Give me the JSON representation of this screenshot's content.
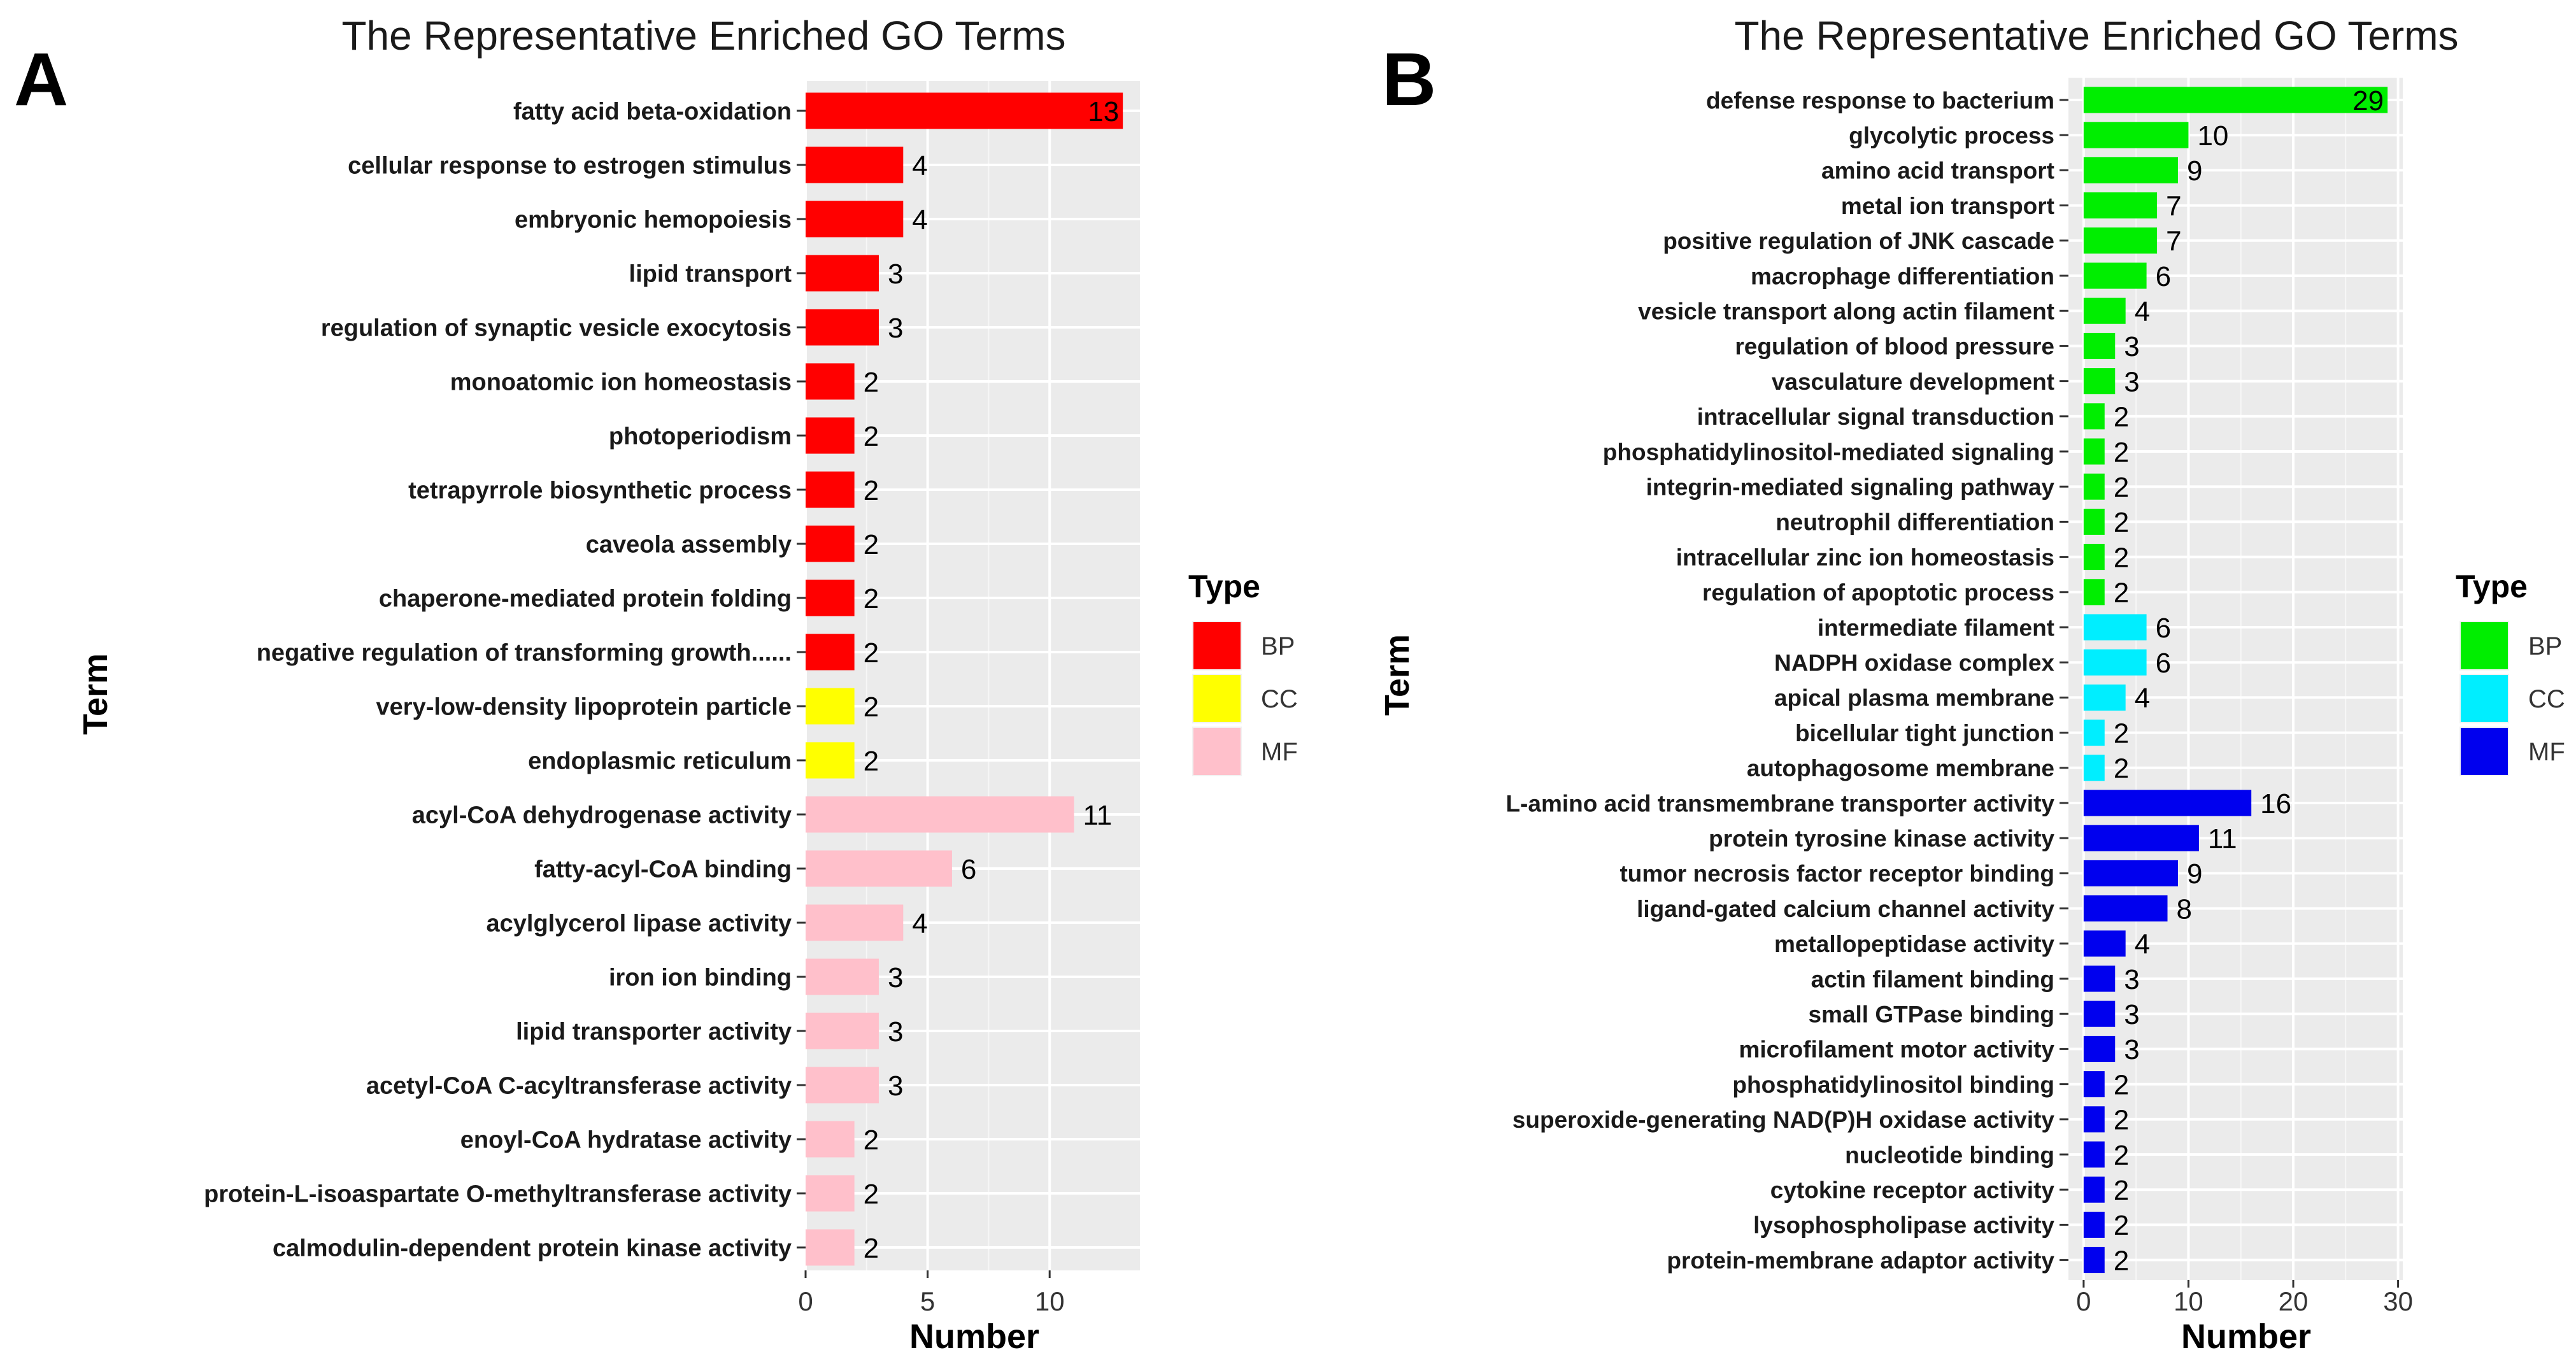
{
  "chart_data": [
    {
      "type": "bar",
      "panel": "A",
      "title": "The Representative Enriched GO Terms",
      "xlabel": "Number",
      "ylabel": "Term",
      "xlim": [
        0,
        13.7
      ],
      "xticks": [
        0,
        5,
        10
      ],
      "legend_title": "Type",
      "legend": [
        {
          "name": "BP",
          "color": "#ff0000"
        },
        {
          "name": "CC",
          "color": "#ffff00"
        },
        {
          "name": "MF",
          "color": "#ffc0cb"
        }
      ],
      "bars": [
        {
          "term": "fatty acid beta-oxidation",
          "value": 13,
          "type": "BP"
        },
        {
          "term": "cellular response to estrogen stimulus",
          "value": 4,
          "type": "BP"
        },
        {
          "term": "embryonic hemopoiesis",
          "value": 4,
          "type": "BP"
        },
        {
          "term": "lipid transport",
          "value": 3,
          "type": "BP"
        },
        {
          "term": "regulation of synaptic vesicle exocytosis",
          "value": 3,
          "type": "BP"
        },
        {
          "term": "monoatomic ion homeostasis",
          "value": 2,
          "type": "BP"
        },
        {
          "term": "photoperiodism",
          "value": 2,
          "type": "BP"
        },
        {
          "term": "tetrapyrrole biosynthetic process",
          "value": 2,
          "type": "BP"
        },
        {
          "term": "caveola assembly",
          "value": 2,
          "type": "BP"
        },
        {
          "term": "chaperone-mediated protein folding",
          "value": 2,
          "type": "BP"
        },
        {
          "term": "negative regulation of transforming growth......",
          "value": 2,
          "type": "BP"
        },
        {
          "term": "very-low-density lipoprotein particle",
          "value": 2,
          "type": "CC"
        },
        {
          "term": "endoplasmic reticulum",
          "value": 2,
          "type": "CC"
        },
        {
          "term": "acyl-CoA dehydrogenase activity",
          "value": 11,
          "type": "MF"
        },
        {
          "term": "fatty-acyl-CoA binding",
          "value": 6,
          "type": "MF"
        },
        {
          "term": "acylglycerol lipase activity",
          "value": 4,
          "type": "MF"
        },
        {
          "term": "iron ion binding",
          "value": 3,
          "type": "MF"
        },
        {
          "term": "lipid transporter activity",
          "value": 3,
          "type": "MF"
        },
        {
          "term": "acetyl-CoA C-acyltransferase activity",
          "value": 3,
          "type": "MF"
        },
        {
          "term": "enoyl-CoA hydratase activity",
          "value": 2,
          "type": "MF"
        },
        {
          "term": "protein-L-isoaspartate O-methyltransferase activity",
          "value": 2,
          "type": "MF"
        },
        {
          "term": "calmodulin-dependent protein kinase activity",
          "value": 2,
          "type": "MF"
        }
      ]
    },
    {
      "type": "bar",
      "panel": "B",
      "title": "The Representative Enriched GO Terms",
      "xlabel": "Number",
      "ylabel": "Term",
      "xlim": [
        -1.45,
        30.45
      ],
      "xticks": [
        0,
        10,
        20,
        30
      ],
      "legend_title": "Type",
      "legend": [
        {
          "name": "BP",
          "color": "#00ee00"
        },
        {
          "name": "CC",
          "color": "#00eeff"
        },
        {
          "name": "MF",
          "color": "#0000ee"
        }
      ],
      "bars": [
        {
          "term": "defense response to bacterium",
          "value": 29,
          "type": "BP"
        },
        {
          "term": "glycolytic process",
          "value": 10,
          "type": "BP"
        },
        {
          "term": "amino acid transport",
          "value": 9,
          "type": "BP"
        },
        {
          "term": "metal ion transport",
          "value": 7,
          "type": "BP"
        },
        {
          "term": "positive regulation of JNK cascade",
          "value": 7,
          "type": "BP"
        },
        {
          "term": "macrophage differentiation",
          "value": 6,
          "type": "BP"
        },
        {
          "term": "vesicle transport along actin filament",
          "value": 4,
          "type": "BP"
        },
        {
          "term": "regulation of blood pressure",
          "value": 3,
          "type": "BP"
        },
        {
          "term": "vasculature development",
          "value": 3,
          "type": "BP"
        },
        {
          "term": "intracellular signal transduction",
          "value": 2,
          "type": "BP"
        },
        {
          "term": "phosphatidylinositol-mediated signaling",
          "value": 2,
          "type": "BP"
        },
        {
          "term": "integrin-mediated signaling pathway",
          "value": 2,
          "type": "BP"
        },
        {
          "term": "neutrophil differentiation",
          "value": 2,
          "type": "BP"
        },
        {
          "term": "intracellular zinc ion homeostasis",
          "value": 2,
          "type": "BP"
        },
        {
          "term": "regulation of apoptotic process",
          "value": 2,
          "type": "BP"
        },
        {
          "term": "intermediate filament",
          "value": 6,
          "type": "CC"
        },
        {
          "term": "NADPH oxidase complex",
          "value": 6,
          "type": "CC"
        },
        {
          "term": "apical plasma membrane",
          "value": 4,
          "type": "CC"
        },
        {
          "term": "bicellular tight junction",
          "value": 2,
          "type": "CC"
        },
        {
          "term": "autophagosome membrane",
          "value": 2,
          "type": "CC"
        },
        {
          "term": "L-amino acid transmembrane transporter activity",
          "value": 16,
          "type": "MF"
        },
        {
          "term": "protein tyrosine kinase activity",
          "value": 11,
          "type": "MF"
        },
        {
          "term": "tumor necrosis factor receptor binding",
          "value": 9,
          "type": "MF"
        },
        {
          "term": "ligand-gated calcium channel activity",
          "value": 8,
          "type": "MF"
        },
        {
          "term": "metallopeptidase activity",
          "value": 4,
          "type": "MF"
        },
        {
          "term": "actin filament binding",
          "value": 3,
          "type": "MF"
        },
        {
          "term": "small GTPase binding",
          "value": 3,
          "type": "MF"
        },
        {
          "term": "microfilament motor activity",
          "value": 3,
          "type": "MF"
        },
        {
          "term": "phosphatidylinositol binding",
          "value": 2,
          "type": "MF"
        },
        {
          "term": "superoxide-generating NAD(P)H oxidase activity",
          "value": 2,
          "type": "MF"
        },
        {
          "term": "nucleotide binding",
          "value": 2,
          "type": "MF"
        },
        {
          "term": "cytokine receptor activity",
          "value": 2,
          "type": "MF"
        },
        {
          "term": "lysophospholipase activity",
          "value": 2,
          "type": "MF"
        },
        {
          "term": "protein-membrane adaptor activity",
          "value": 2,
          "type": "MF"
        }
      ]
    }
  ]
}
